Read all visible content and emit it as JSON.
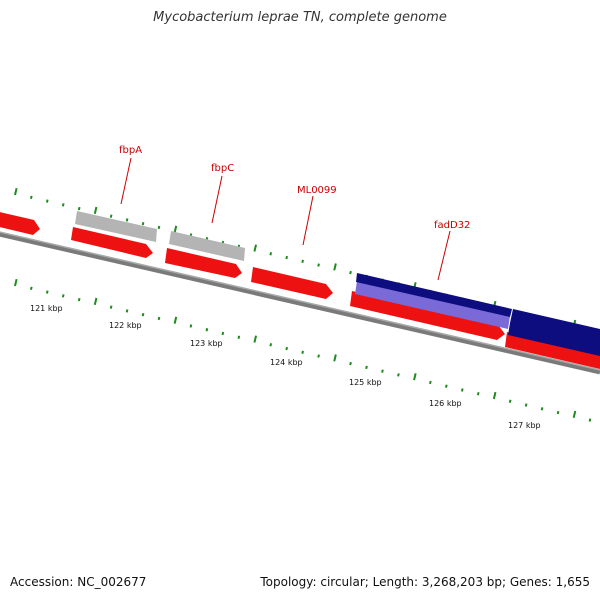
{
  "title": "Mycobacterium leprae TN, complete genome",
  "footer": {
    "accession": "Accession: NC_002677",
    "topology": "Topology: circular; Length: 3,268,203 bp; Genes: 1,655"
  },
  "colors": {
    "forward_gene": "#ee1111",
    "pseudo_gene": "#b4b4b4",
    "highlight_gene": "#0d0d80",
    "highlight_gene_light": "#7a6ad8",
    "backbone": "#7a7a7a",
    "tick": "#1f8a1f",
    "label": "#cc0000",
    "tick_label": "#111111"
  },
  "scale": {
    "labels": [
      "121 kbp",
      "122 kbp",
      "123 kbp",
      "124 kbp",
      "125 kbp",
      "126 kbp",
      "127 kbp"
    ]
  },
  "gene_labels": [
    {
      "id": "fbpA",
      "text": "fbpA"
    },
    {
      "id": "fbpC",
      "text": "fbpC"
    },
    {
      "id": "ML0099",
      "text": "ML0099"
    },
    {
      "id": "fadD32",
      "text": "fadD32"
    }
  ]
}
